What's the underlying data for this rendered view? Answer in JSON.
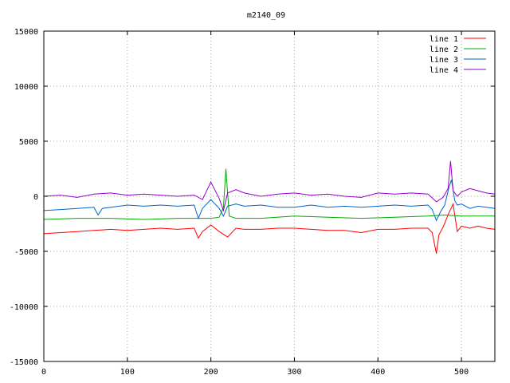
{
  "chart_data": {
    "type": "line",
    "title": "m2140_09",
    "xlim": [
      0,
      540
    ],
    "ylim": [
      -15000,
      15000
    ],
    "xticks": [
      0,
      100,
      200,
      300,
      400,
      500
    ],
    "yticks": [
      -15000,
      -10000,
      -5000,
      0,
      5000,
      10000,
      15000
    ],
    "grid": true,
    "legend_position": "top-right",
    "series": [
      {
        "name": "line 1",
        "color": "#ff0000",
        "x": [
          0,
          20,
          40,
          60,
          80,
          100,
          120,
          140,
          160,
          180,
          185,
          190,
          200,
          210,
          220,
          230,
          240,
          260,
          280,
          300,
          320,
          340,
          360,
          380,
          400,
          420,
          440,
          460,
          465,
          470,
          473,
          478,
          485,
          490,
          495,
          500,
          510,
          520,
          530,
          540
        ],
        "y": [
          -3400,
          -3300,
          -3200,
          -3100,
          -3000,
          -3100,
          -3000,
          -2900,
          -3000,
          -2900,
          -3800,
          -3200,
          -2600,
          -3200,
          -3700,
          -2900,
          -3000,
          -3000,
          -2900,
          -2900,
          -3000,
          -3100,
          -3100,
          -3300,
          -3000,
          -3000,
          -2900,
          -2900,
          -3300,
          -5200,
          -3500,
          -2800,
          -1500,
          -700,
          -3200,
          -2700,
          -2900,
          -2700,
          -2900,
          -3000
        ]
      },
      {
        "name": "line 2",
        "color": "#00aa00",
        "x": [
          0,
          40,
          80,
          120,
          160,
          200,
          210,
          215,
          218,
          222,
          230,
          260,
          300,
          340,
          380,
          420,
          460,
          480,
          500,
          540
        ],
        "y": [
          -2100,
          -2000,
          -2000,
          -2100,
          -2000,
          -2000,
          -1900,
          -1000,
          2500,
          -1800,
          -2000,
          -2000,
          -1800,
          -1900,
          -2000,
          -1900,
          -1800,
          -1700,
          -1800,
          -1800
        ]
      },
      {
        "name": "line 3",
        "color": "#0066cc",
        "x": [
          0,
          20,
          40,
          60,
          65,
          70,
          100,
          120,
          140,
          160,
          180,
          185,
          190,
          200,
          210,
          215,
          220,
          230,
          240,
          260,
          280,
          300,
          320,
          340,
          360,
          380,
          400,
          420,
          440,
          460,
          465,
          470,
          475,
          480,
          485,
          488,
          492,
          495,
          500,
          510,
          520,
          530,
          540
        ],
        "y": [
          -1300,
          -1200,
          -1100,
          -1000,
          -1700,
          -1100,
          -800,
          -900,
          -800,
          -900,
          -800,
          -2000,
          -1100,
          -300,
          -1100,
          -1800,
          -900,
          -700,
          -900,
          -800,
          -1000,
          -1000,
          -800,
          -1000,
          -900,
          -1000,
          -900,
          -800,
          -900,
          -800,
          -1200,
          -2200,
          -1400,
          -800,
          800,
          1500,
          -400,
          -800,
          -700,
          -1100,
          -900,
          -1000,
          -1100
        ]
      },
      {
        "name": "line 4",
        "color": "#9900cc",
        "x": [
          0,
          20,
          40,
          60,
          80,
          100,
          120,
          140,
          160,
          180,
          190,
          200,
          210,
          215,
          220,
          230,
          240,
          260,
          280,
          300,
          320,
          340,
          360,
          380,
          400,
          420,
          440,
          460,
          470,
          478,
          484,
          487,
          490,
          495,
          500,
          510,
          520,
          530,
          540
        ],
        "y": [
          0,
          100,
          -100,
          200,
          300,
          100,
          200,
          100,
          0,
          100,
          -300,
          1300,
          -200,
          -1300,
          300,
          600,
          300,
          0,
          200,
          300,
          100,
          200,
          0,
          -100,
          300,
          200,
          300,
          200,
          -500,
          -100,
          700,
          3200,
          500,
          0,
          400,
          700,
          500,
          300,
          200
        ]
      }
    ]
  }
}
